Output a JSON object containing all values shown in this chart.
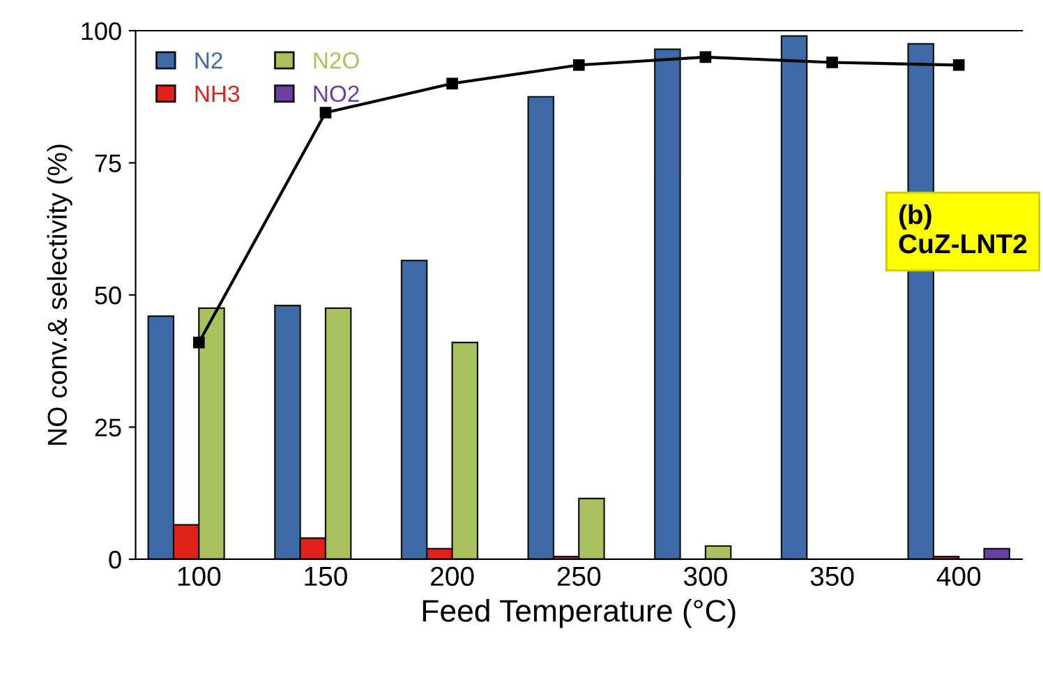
{
  "chart_data": {
    "type": "bar",
    "xlabel": "Feed Temperature (°C)",
    "ylabel": "NO conv.& selectivity (%)",
    "categories": [
      "100",
      "150",
      "200",
      "250",
      "300",
      "350",
      "400"
    ],
    "series": [
      {
        "name": "N2",
        "color": "#3e6aa8",
        "values": [
          46,
          48,
          56.5,
          87.5,
          96.5,
          99,
          97.5
        ]
      },
      {
        "name": "NH3",
        "color": "#e0201b",
        "values": [
          6.5,
          4,
          2,
          0.5,
          0,
          0,
          0.5
        ]
      },
      {
        "name": "N2O",
        "color": "#a9c15e",
        "values": [
          47.5,
          47.5,
          41,
          11.5,
          2.5,
          0,
          0
        ]
      },
      {
        "name": "NO2",
        "color": "#6a3fa0",
        "values": [
          0,
          0,
          0,
          0,
          0,
          0,
          2
        ]
      },
      {
        "type": "line",
        "color": "#000000",
        "marker": "square",
        "values": [
          41,
          84.5,
          90,
          93.5,
          95,
          94,
          93.5
        ]
      }
    ],
    "ylim": [
      0,
      100
    ],
    "yticks": [
      0,
      25,
      50,
      75,
      100
    ],
    "grid": false,
    "legend": "top left",
    "annotations": [
      "(b)\nCuZ-LNT2"
    ]
  }
}
